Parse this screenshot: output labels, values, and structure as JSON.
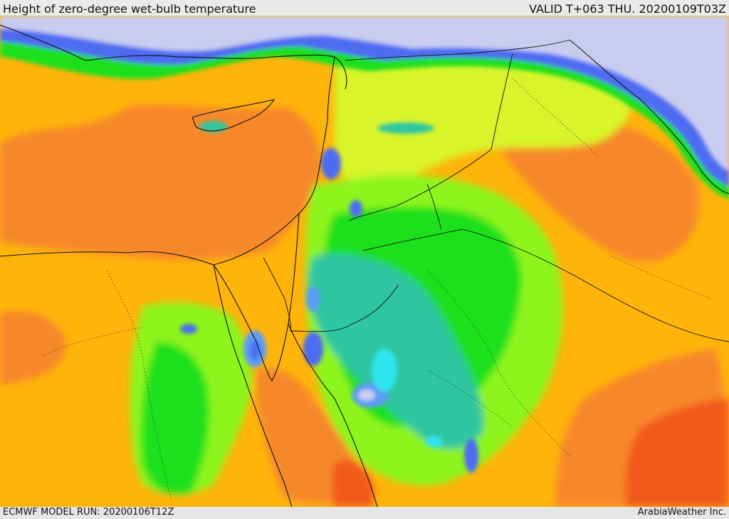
{
  "header": {
    "title": "Height of zero-degree wet-bulb temperature",
    "valid": "VALID T+063 THU. 20200109T03Z"
  },
  "footer": {
    "model_run": "ECMWF MODEL RUN: 20200106T12Z",
    "credit": "ArabiaWeather Inc."
  },
  "colors": {
    "lavender": "#c8cdf0",
    "blue": "#4d6cf2",
    "mid_blue": "#5b9cf5",
    "cyan": "#2fe6f0",
    "teal": "#2fc6a0",
    "green": "#1fe01f",
    "light_green": "#8df51e",
    "yellow_green": "#d8f52a",
    "amber": "#ffb40a",
    "orange": "#f7882a",
    "red_orange": "#f25a1e"
  }
}
